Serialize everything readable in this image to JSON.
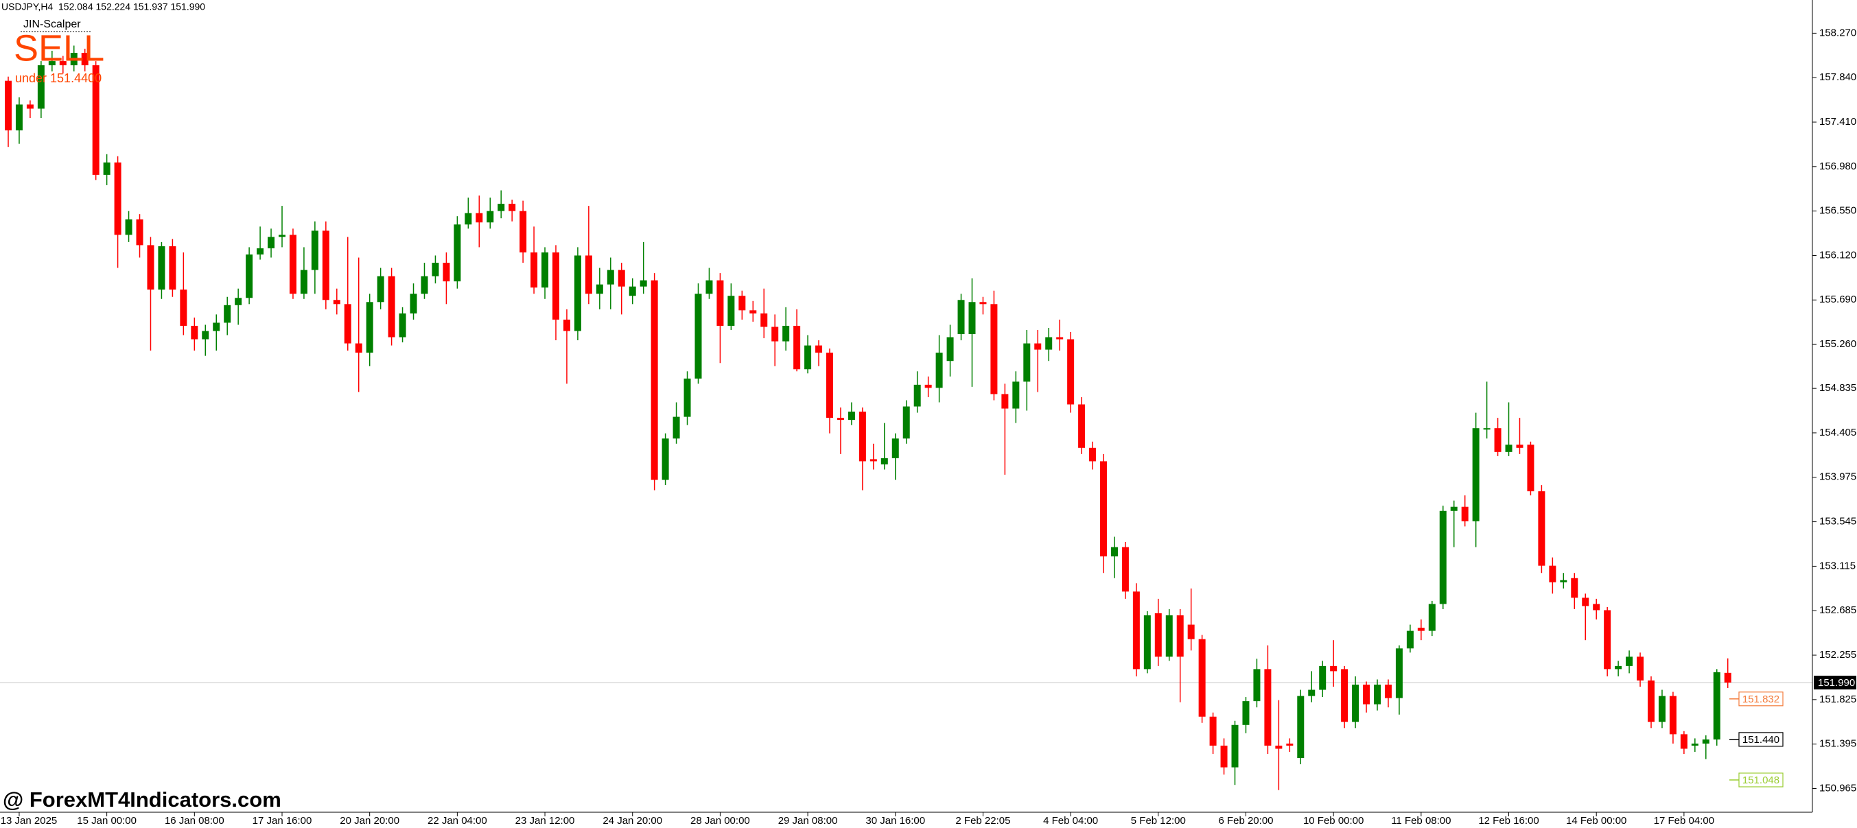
{
  "chart_data": {
    "type": "candlestick",
    "header": "USDJPY,H4  152.084 152.224 151.937 151.990",
    "indicator": {
      "name": "JIN-Scalper",
      "signal": "SELL",
      "note": "under 151.4400",
      "color": "#ff4500"
    },
    "watermark": "@ ForexMT4Indicators.com",
    "up_color": "#008000",
    "down_color": "#ff0000",
    "categories": [
      null,
      "13 Jan 2025",
      null,
      null,
      null,
      null,
      null,
      null,
      null,
      "15 Jan 00:00",
      null,
      null,
      null,
      null,
      null,
      null,
      null,
      "16 Jan 08:00",
      null,
      null,
      null,
      null,
      null,
      null,
      null,
      "17 Jan 16:00",
      null,
      null,
      null,
      null,
      null,
      null,
      null,
      "20 Jan 20:00",
      null,
      null,
      null,
      null,
      null,
      null,
      null,
      "22 Jan 04:00",
      null,
      null,
      null,
      null,
      null,
      null,
      null,
      "23 Jan 12:00",
      null,
      null,
      null,
      null,
      null,
      null,
      null,
      "24 Jan 20:00",
      null,
      null,
      null,
      null,
      null,
      null,
      null,
      "28 Jan 00:00",
      null,
      null,
      null,
      null,
      null,
      null,
      null,
      "29 Jan 08:00",
      null,
      null,
      null,
      null,
      null,
      null,
      null,
      "30 Jan 16:00",
      null,
      null,
      null,
      null,
      null,
      null,
      null,
      "2 Feb 22:05",
      null,
      null,
      null,
      null,
      null,
      null,
      null,
      "4 Feb 04:00",
      null,
      null,
      null,
      null,
      null,
      null,
      null,
      "5 Feb 12:00",
      null,
      null,
      null,
      null,
      null,
      null,
      null,
      "6 Feb 20:00",
      null,
      null,
      null,
      null,
      null,
      null,
      null,
      "10 Feb 00:00",
      null,
      null,
      null,
      null,
      null,
      null,
      null,
      "11 Feb 08:00",
      null,
      null,
      null,
      null,
      null,
      null,
      null,
      "12 Feb 16:00",
      null,
      null,
      null,
      null,
      null,
      null,
      null,
      "14 Feb 00:00",
      null,
      null,
      null,
      null,
      null,
      null,
      null,
      "17 Feb 04:00",
      null,
      null,
      null,
      null
    ],
    "open": [
      157.81,
      157.33,
      157.58,
      157.54,
      157.96,
      158.0,
      157.96,
      158.08,
      157.96,
      156.9,
      157.02,
      156.32,
      156.47,
      156.22,
      155.79,
      156.21,
      155.79,
      155.44,
      155.31,
      155.39,
      155.47,
      155.64,
      155.71,
      156.13,
      156.19,
      156.3,
      156.32,
      155.75,
      155.98,
      156.36,
      155.69,
      155.65,
      155.27,
      155.18,
      155.67,
      155.92,
      155.33,
      155.56,
      155.75,
      155.92,
      156.05,
      155.87,
      156.42,
      156.53,
      156.44,
      156.55,
      156.62,
      156.55,
      156.15,
      155.81,
      156.15,
      155.5,
      155.39,
      156.12,
      155.75,
      155.84,
      155.98,
      155.73,
      155.82,
      155.88,
      153.95,
      154.35,
      154.56,
      154.93,
      155.75,
      155.88,
      155.44,
      155.73,
      155.59,
      155.56,
      155.43,
      155.29,
      155.44,
      155.02,
      155.25,
      155.18,
      154.55,
      154.53,
      154.61,
      154.15,
      154.1,
      154.16,
      154.35,
      154.66,
      154.87,
      154.84,
      155.1,
      155.36,
      155.36,
      155.67,
      155.65,
      154.78,
      154.64,
      154.9,
      155.27,
      155.21,
      155.33,
      155.31,
      154.68,
      154.26,
      154.13,
      153.21,
      153.3,
      152.87,
      152.12,
      152.66,
      152.24,
      152.64,
      152.55,
      152.41,
      151.66,
      151.38,
      151.17,
      151.58,
      151.81,
      152.12,
      151.38,
      151.4,
      151.26,
      151.86,
      151.92,
      152.15,
      152.12,
      151.61,
      151.97,
      151.78,
      151.97,
      151.84,
      152.32,
      152.52,
      152.49,
      152.75,
      153.65,
      153.69,
      153.55,
      154.45,
      154.45,
      154.22,
      154.29,
      154.29,
      153.84,
      153.12,
      152.96,
      153.0,
      152.81,
      152.75,
      152.69,
      152.12,
      152.15,
      152.24,
      152.01,
      151.61,
      151.86,
      151.49,
      151.38,
      151.4,
      151.44,
      152.084
    ],
    "high": [
      157.85,
      157.65,
      157.62,
      158.0,
      158.1,
      158.05,
      158.15,
      158.12,
      158.0,
      157.1,
      157.08,
      156.55,
      156.52,
      156.3,
      156.25,
      156.28,
      156.15,
      155.52,
      155.45,
      155.55,
      155.72,
      155.8,
      156.2,
      156.4,
      156.38,
      156.6,
      156.38,
      156.2,
      156.45,
      156.45,
      155.8,
      156.3,
      156.1,
      155.75,
      156.0,
      156.0,
      155.62,
      155.85,
      156.05,
      156.12,
      156.15,
      156.5,
      156.68,
      156.7,
      156.68,
      156.75,
      156.66,
      156.65,
      156.4,
      156.2,
      156.22,
      155.6,
      156.2,
      156.6,
      156.0,
      156.1,
      156.05,
      155.9,
      156.25,
      155.95,
      154.4,
      154.7,
      155.0,
      155.85,
      156.0,
      155.95,
      155.85,
      155.78,
      155.68,
      155.8,
      155.55,
      155.62,
      155.6,
      155.35,
      155.3,
      155.22,
      154.65,
      154.7,
      154.65,
      154.3,
      154.5,
      154.4,
      154.72,
      155.0,
      154.95,
      155.35,
      155.45,
      155.75,
      155.9,
      155.72,
      155.78,
      154.88,
      155.0,
      155.4,
      155.4,
      155.42,
      155.5,
      155.38,
      154.75,
      154.32,
      154.2,
      153.4,
      153.35,
      152.95,
      152.68,
      152.8,
      152.7,
      152.7,
      152.9,
      152.45,
      151.7,
      151.45,
      151.62,
      151.85,
      152.22,
      152.35,
      151.82,
      151.45,
      151.92,
      152.1,
      152.2,
      152.4,
      152.15,
      152.05,
      152.0,
      152.02,
      152.02,
      152.35,
      152.55,
      152.6,
      152.78,
      153.7,
      153.75,
      153.8,
      154.6,
      154.9,
      154.55,
      154.7,
      154.55,
      154.32,
      153.9,
      153.2,
      153.05,
      153.05,
      152.85,
      152.8,
      152.72,
      152.2,
      152.3,
      152.28,
      152.05,
      151.92,
      151.9,
      151.52,
      151.45,
      151.48,
      152.12,
      152.224
    ],
    "low": [
      157.17,
      157.2,
      157.45,
      157.45,
      157.9,
      157.88,
      157.9,
      157.9,
      156.85,
      156.8,
      156.0,
      156.25,
      156.1,
      155.2,
      155.7,
      155.72,
      155.35,
      155.2,
      155.15,
      155.2,
      155.35,
      155.45,
      155.65,
      156.08,
      156.1,
      156.2,
      155.7,
      155.7,
      155.75,
      155.6,
      155.55,
      155.2,
      154.8,
      155.05,
      155.6,
      155.25,
      155.28,
      155.5,
      155.7,
      155.85,
      155.65,
      155.8,
      156.38,
      156.2,
      156.38,
      156.48,
      156.45,
      156.05,
      155.75,
      155.7,
      155.3,
      154.88,
      155.3,
      155.65,
      155.6,
      155.6,
      155.55,
      155.65,
      155.75,
      153.85,
      153.9,
      154.3,
      154.48,
      154.88,
      155.7,
      155.08,
      155.4,
      155.5,
      155.48,
      155.32,
      155.05,
      155.2,
      155.0,
      154.98,
      155.05,
      154.4,
      154.2,
      154.48,
      153.85,
      154.05,
      154.05,
      153.95,
      154.3,
      154.6,
      154.75,
      154.7,
      154.95,
      155.3,
      154.85,
      155.55,
      154.72,
      154.0,
      154.5,
      154.62,
      154.8,
      155.1,
      155.2,
      154.6,
      154.2,
      154.05,
      153.05,
      153.0,
      152.8,
      152.05,
      152.08,
      152.15,
      152.2,
      151.8,
      152.3,
      151.6,
      151.3,
      151.1,
      151.0,
      151.5,
      151.75,
      151.3,
      150.95,
      151.32,
      151.2,
      151.8,
      151.85,
      151.95,
      151.55,
      151.55,
      151.7,
      151.72,
      151.75,
      151.68,
      152.28,
      152.4,
      152.44,
      152.7,
      153.3,
      153.5,
      153.3,
      154.35,
      154.18,
      154.18,
      154.2,
      153.8,
      153.05,
      152.85,
      152.9,
      152.7,
      152.4,
      152.6,
      152.05,
      152.05,
      152.08,
      151.95,
      151.55,
      151.55,
      151.4,
      151.3,
      151.32,
      151.25,
      151.38,
      151.937
    ],
    "close": [
      157.33,
      157.58,
      157.54,
      157.96,
      158.0,
      157.96,
      158.08,
      157.96,
      156.9,
      157.02,
      156.32,
      156.47,
      156.22,
      155.79,
      156.21,
      155.79,
      155.44,
      155.31,
      155.39,
      155.47,
      155.64,
      155.71,
      156.13,
      156.19,
      156.3,
      156.32,
      155.75,
      155.98,
      156.36,
      155.69,
      155.65,
      155.27,
      155.18,
      155.67,
      155.92,
      155.33,
      155.56,
      155.75,
      155.92,
      156.05,
      155.87,
      156.42,
      156.53,
      156.44,
      156.55,
      156.62,
      156.55,
      156.15,
      155.81,
      156.15,
      155.5,
      155.39,
      156.12,
      155.75,
      155.84,
      155.98,
      155.82,
      155.82,
      155.88,
      153.95,
      154.35,
      154.56,
      154.93,
      155.75,
      155.88,
      155.44,
      155.73,
      155.59,
      155.56,
      155.43,
      155.29,
      155.44,
      155.02,
      155.25,
      155.18,
      154.55,
      154.53,
      154.61,
      154.13,
      154.13,
      154.16,
      154.35,
      154.66,
      154.87,
      154.84,
      155.18,
      155.33,
      155.69,
      155.67,
      155.65,
      154.78,
      154.64,
      154.9,
      155.27,
      155.21,
      155.33,
      155.31,
      154.68,
      154.26,
      154.13,
      153.21,
      153.3,
      152.87,
      152.12,
      152.64,
      152.24,
      152.64,
      152.24,
      152.41,
      151.66,
      151.38,
      151.17,
      151.58,
      151.81,
      152.12,
      151.38,
      151.35,
      151.38,
      151.86,
      151.92,
      152.15,
      152.1,
      151.61,
      151.97,
      151.78,
      151.97,
      151.84,
      152.32,
      152.49,
      152.49,
      152.75,
      153.65,
      153.69,
      153.55,
      154.45,
      154.45,
      154.22,
      154.29,
      154.26,
      153.84,
      153.12,
      152.96,
      152.98,
      152.81,
      152.73,
      152.69,
      152.12,
      152.15,
      152.24,
      152.01,
      151.61,
      151.86,
      151.49,
      151.35,
      151.4,
      151.44,
      152.09,
      151.99
    ],
    "ylim": [
      150.736,
      158.591
    ],
    "yticks": [
      {
        "value": 158.27,
        "label": "158.270"
      },
      {
        "value": 157.84,
        "label": "157.840"
      },
      {
        "value": 157.41,
        "label": "157.410"
      },
      {
        "value": 156.98,
        "label": "156.980"
      },
      {
        "value": 156.55,
        "label": "156.550"
      },
      {
        "value": 156.12,
        "label": "156.120"
      },
      {
        "value": 155.69,
        "label": "155.690"
      },
      {
        "value": 155.26,
        "label": "155.260"
      },
      154.835,
      154.405,
      153.975,
      153.545,
      153.115,
      152.685,
      152.255,
      151.825,
      151.395,
      150.965
    ],
    "grid": false,
    "bid": {
      "value": 151.99,
      "label": "151.990"
    },
    "levels": [
      {
        "value": 151.832,
        "label": "151.832",
        "color": "#f47c3c"
      },
      {
        "value": 151.44,
        "label": "151.440",
        "color": "#000000"
      },
      {
        "value": 151.048,
        "label": "151.048",
        "color": "#9acd32"
      }
    ]
  }
}
